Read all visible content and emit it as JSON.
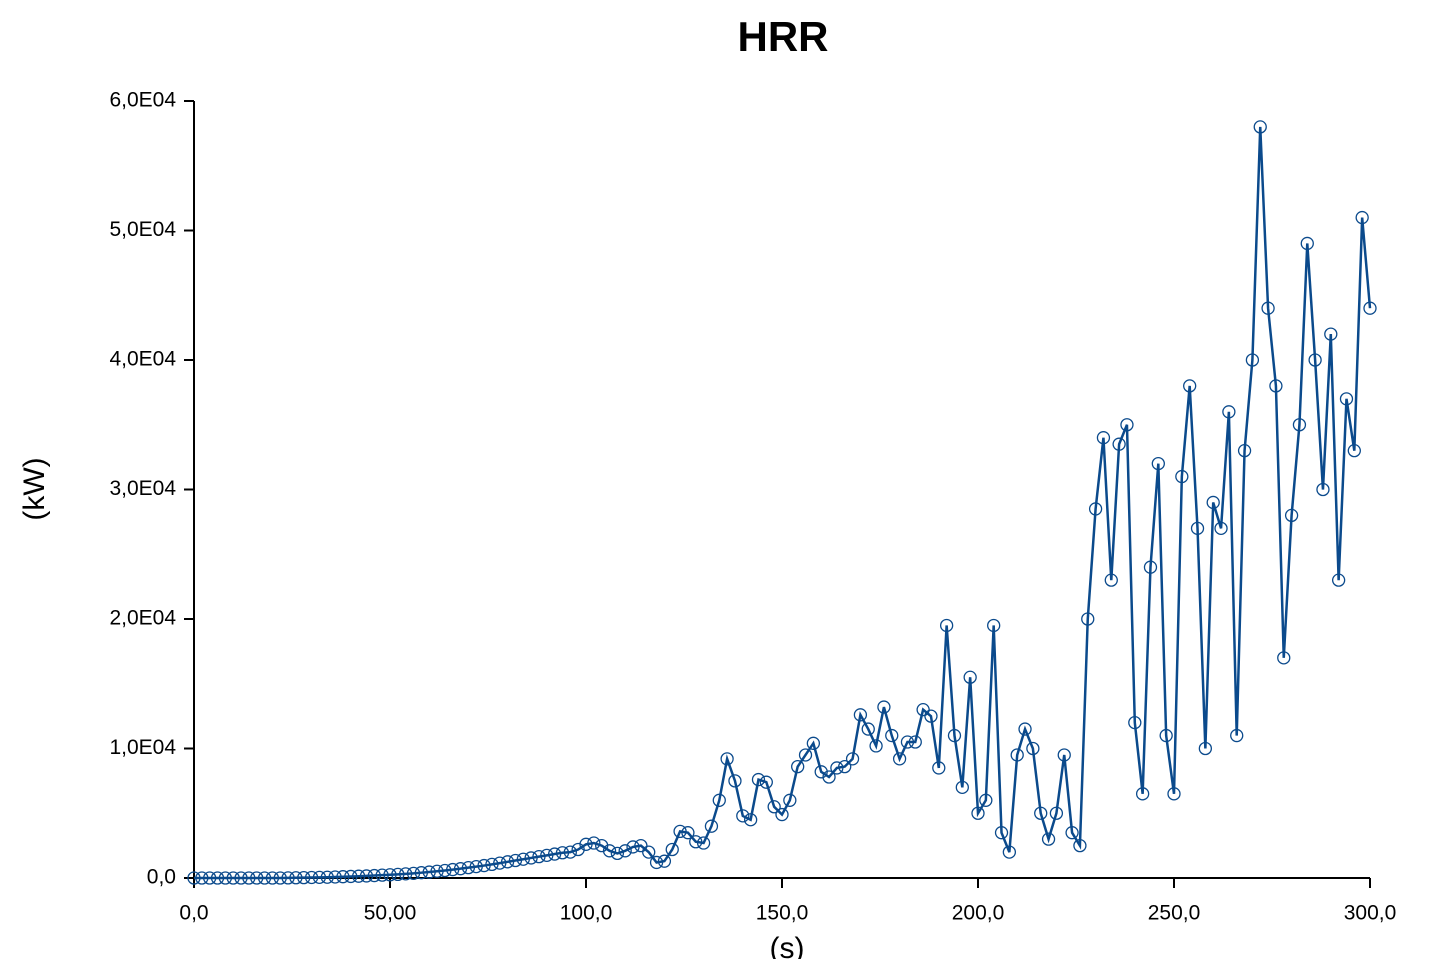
{
  "chart_data": {
    "type": "line",
    "title": "HRR",
    "x_label": "(s)",
    "y_label": "(kW)",
    "x": [
      0,
      2,
      4,
      6,
      8,
      10,
      12,
      14,
      16,
      18,
      20,
      22,
      24,
      26,
      28,
      30,
      32,
      34,
      36,
      38,
      40,
      42,
      44,
      46,
      48,
      50,
      52,
      54,
      56,
      58,
      60,
      62,
      64,
      66,
      68,
      70,
      72,
      74,
      76,
      78,
      80,
      82,
      84,
      86,
      88,
      90,
      92,
      94,
      96,
      98,
      100,
      102,
      104,
      106,
      108,
      110,
      112,
      114,
      116,
      118,
      120,
      122,
      124,
      126,
      128,
      130,
      132,
      134,
      136,
      138,
      140,
      142,
      144,
      146,
      148,
      150,
      152,
      154,
      156,
      158,
      160,
      162,
      164,
      166,
      168,
      170,
      172,
      174,
      176,
      178,
      180,
      182,
      184,
      186,
      188,
      190,
      192,
      194,
      196,
      198,
      200,
      202,
      204,
      206,
      208,
      210,
      212,
      214,
      216,
      218,
      220,
      222,
      224,
      226,
      228,
      230,
      232,
      234,
      236,
      238,
      240,
      242,
      244,
      246,
      248,
      250,
      252,
      254,
      256,
      258,
      260,
      262,
      264,
      266,
      268,
      270,
      272,
      274,
      276,
      278,
      280,
      282,
      284,
      286,
      288,
      290,
      292,
      294,
      296,
      298,
      300
    ],
    "series": [
      {
        "name": "HRR",
        "color": "#0b4a8c",
        "values": [
          0,
          0,
          0,
          0,
          0,
          0,
          0,
          0,
          0,
          0,
          0,
          0,
          10,
          20,
          30,
          40,
          50,
          60,
          80,
          100,
          120,
          140,
          160,
          190,
          220,
          250,
          280,
          320,
          360,
          410,
          460,
          520,
          580,
          650,
          720,
          800,
          880,
          960,
          1050,
          1150,
          1250,
          1350,
          1450,
          1550,
          1650,
          1750,
          1850,
          1950,
          2000,
          2200,
          2600,
          2700,
          2500,
          2100,
          1900,
          2100,
          2400,
          2500,
          2000,
          1200,
          1300,
          2200,
          3600,
          3500,
          2800,
          2700,
          4000,
          6000,
          9200,
          7500,
          4800,
          4500,
          7600,
          7400,
          5500,
          4900,
          6000,
          8600,
          9500,
          10400,
          8200,
          7800,
          8500,
          8600,
          9200,
          12600,
          11500,
          10200,
          13200,
          11000,
          9200,
          10500,
          10500,
          13000,
          12500,
          8500,
          19500,
          11000,
          7000,
          15500,
          5000,
          6000,
          19500,
          3500,
          2000,
          9500,
          11500,
          10000,
          5000,
          3000,
          5000,
          9500,
          3500,
          2500,
          20000,
          28500,
          34000,
          23000,
          33500,
          35000,
          12000,
          6500,
          24000,
          32000,
          11000,
          6500,
          31000,
          38000,
          27000,
          10000,
          29000,
          27000,
          36000,
          11000,
          33000,
          40000,
          58000,
          44000,
          38000,
          17000,
          28000,
          35000,
          49000,
          40000,
          30000,
          42000,
          23000,
          37000,
          33000,
          51000,
          44000
        ]
      }
    ],
    "xlim": [
      0,
      300
    ],
    "ylim": [
      0,
      60000
    ],
    "xticks": [
      {
        "value": 0,
        "label": "0,0"
      },
      {
        "value": 50,
        "label": "50,00"
      },
      {
        "value": 100,
        "label": "100,0"
      },
      {
        "value": 150,
        "label": "150,0"
      },
      {
        "value": 200,
        "label": "200,0"
      },
      {
        "value": 250,
        "label": "250,0"
      },
      {
        "value": 300,
        "label": "300,0"
      }
    ],
    "yticks": [
      {
        "value": 0,
        "label": "0,0"
      },
      {
        "value": 10000,
        "label": "1,0E04"
      },
      {
        "value": 20000,
        "label": "2,0E04"
      },
      {
        "value": 30000,
        "label": "3,0E04"
      },
      {
        "value": 40000,
        "label": "4,0E04"
      },
      {
        "value": 50000,
        "label": "5,0E04"
      },
      {
        "value": 60000,
        "label": "6,0E04"
      }
    ],
    "grid": false
  }
}
